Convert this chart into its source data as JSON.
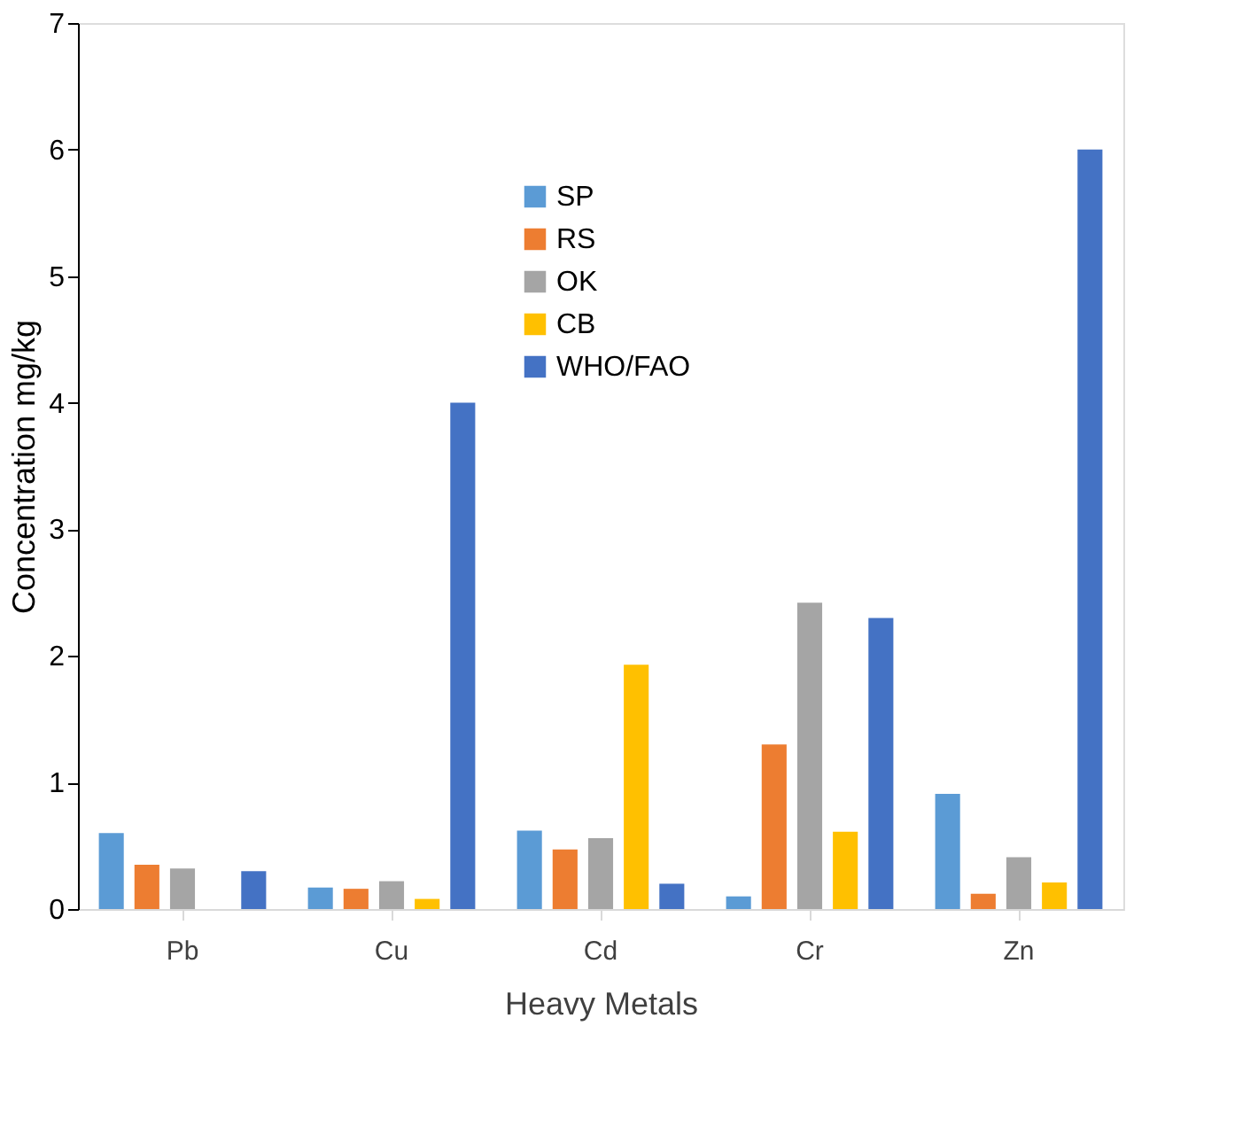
{
  "chart_data": {
    "type": "bar",
    "xlabel": "Heavy Metals",
    "ylabel": "Concentration mg/kg",
    "categories": [
      "Pb",
      "Cu",
      "Cd",
      "Cr",
      "Zn"
    ],
    "series": [
      {
        "name": "SP",
        "color": "#5b9bd5",
        "values": [
          0.6,
          0.17,
          0.62,
          0.1,
          0.91
        ]
      },
      {
        "name": "RS",
        "color": "#ed7d31",
        "values": [
          0.35,
          0.16,
          0.47,
          1.3,
          0.12
        ]
      },
      {
        "name": "OK",
        "color": "#a5a5a5",
        "values": [
          0.32,
          0.22,
          0.56,
          2.42,
          0.41
        ]
      },
      {
        "name": "CB",
        "color": "#ffc000",
        "values": [
          null,
          0.08,
          1.93,
          0.61,
          0.21
        ]
      },
      {
        "name": "WHO/FAO",
        "color": "#4472c4",
        "values": [
          0.3,
          4.0,
          0.2,
          2.3,
          6.0
        ]
      }
    ],
    "ylim": [
      0,
      7
    ],
    "yticks": [
      0,
      1,
      2,
      3,
      4,
      5,
      6,
      7
    ],
    "grid": false,
    "legend": "top"
  }
}
